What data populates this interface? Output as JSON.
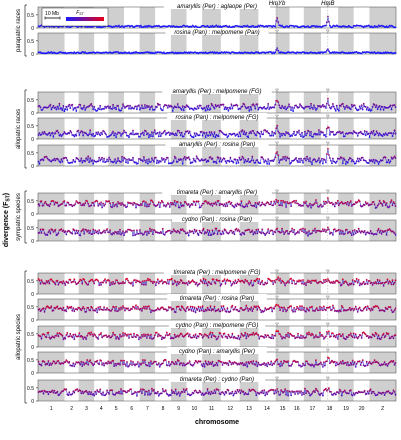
{
  "chart_data": {
    "type": "scatter",
    "x_axis_label": "chromosome",
    "y_axis_label": "divergence (F_ST)",
    "chromosome_labels": [
      "1",
      "2",
      "3",
      "4",
      "5",
      "6",
      "7",
      "8",
      "9",
      "10",
      "11",
      "12",
      "13",
      "14",
      "15",
      "16",
      "17",
      "18",
      "19",
      "20",
      "Z"
    ],
    "chromosome_sizes": [
      17,
      9,
      10,
      9,
      10,
      10,
      10,
      10,
      10,
      10,
      12,
      12,
      12,
      11,
      9,
      9,
      11,
      11,
      10,
      10,
      17
    ],
    "y_ticks": [
      "0",
      "0.5"
    ],
    "ylim": [
      0,
      0.8
    ],
    "groups": [
      {
        "label": "parapatric races",
        "panels": [
          0,
          1
        ]
      },
      {
        "label": "allopatric races",
        "panels": [
          2,
          3,
          4
        ]
      },
      {
        "label": "sympatric species",
        "panels": [
          5,
          6
        ]
      },
      {
        "label": "allopatric species",
        "panels": [
          7,
          8,
          9,
          10,
          11
        ]
      }
    ],
    "panels": [
      {
        "title": "amaryllis (Per) : aglaope (Per)",
        "baseline": 0.06,
        "spread": 0.04,
        "peak_scale": 0.35
      },
      {
        "title": "rosina (Pan) : melpomene (Pan)",
        "baseline": 0.05,
        "spread": 0.03,
        "peak_scale": 0.15
      },
      {
        "title": "amaryllis (Per) : melpomene (FG)",
        "baseline": 0.22,
        "spread": 0.14,
        "peak_scale": 0.3
      },
      {
        "title": "rosina (Pan) : melpomene (FG)",
        "baseline": 0.2,
        "spread": 0.13,
        "peak_scale": 0.3
      },
      {
        "title": "amaryllis (Per) : rosina (Pan)",
        "baseline": 0.22,
        "spread": 0.14,
        "peak_scale": 0.3
      },
      {
        "title": "timareta (Per) : amaryllis (Per)",
        "baseline": 0.38,
        "spread": 0.14,
        "peak_scale": 0.2
      },
      {
        "title": "cydno (Pan) : rosina (Pan)",
        "baseline": 0.34,
        "spread": 0.13,
        "peak_scale": 0.1
      },
      {
        "title": "timareta (Per) : melpomene (FG)",
        "baseline": 0.45,
        "spread": 0.13,
        "peak_scale": 0.15
      },
      {
        "title": "timareta (Per) : rosina (Pan)",
        "baseline": 0.42,
        "spread": 0.13,
        "peak_scale": 0.15
      },
      {
        "title": "cydno (Pan) : melpomene (FG)",
        "baseline": 0.42,
        "spread": 0.13,
        "peak_scale": 0.15
      },
      {
        "title": "cydno (Pan) : amaryllis (Per)",
        "baseline": 0.37,
        "spread": 0.13,
        "peak_scale": 0.15
      },
      {
        "title": "timareta (Per) : cydno (Pan)",
        "baseline": 0.33,
        "spread": 0.13,
        "peak_scale": 0.1
      }
    ],
    "loci": [
      {
        "label": "HmYb",
        "chromosome": "15",
        "position": 0.1
      },
      {
        "label": "HmB",
        "chromosome": "18",
        "position": 0.4
      }
    ],
    "legend": {
      "scale_label": "10 Mb",
      "color_label": "F_ST",
      "color_low": "#1a1aff",
      "color_high": "#e8001a"
    },
    "colors": {
      "band_gray": "#cfcfcf",
      "band_white": "#ffffff",
      "line": "#1a10c8",
      "low": "#1a1aff",
      "high": "#e8001a"
    }
  }
}
